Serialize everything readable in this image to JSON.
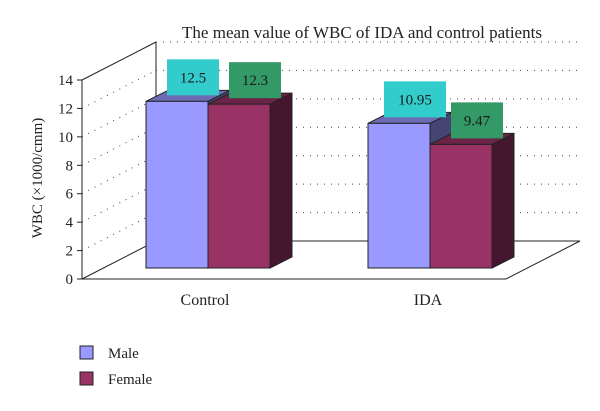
{
  "chart_data": {
    "type": "bar",
    "title": "The mean value of WBC of IDA and control patients",
    "ylabel": "WBC (×1000/cmm)",
    "xlabel": "",
    "categories": [
      "Control",
      "IDA"
    ],
    "series": [
      {
        "name": "Male",
        "values": [
          12.5,
          10.95
        ],
        "color": "#9999ff",
        "labels": [
          "12.5",
          "10.95"
        ],
        "label_bg": "#33cccc"
      },
      {
        "name": "Female",
        "values": [
          12.3,
          9.47
        ],
        "color": "#993366",
        "labels": [
          "12.3",
          "9.47"
        ],
        "label_bg": "#339966"
      }
    ],
    "ylim": [
      0,
      14
    ],
    "yticks": [
      "0",
      "2",
      "4",
      "6",
      "8",
      "10",
      "12",
      "14"
    ],
    "grid": true,
    "style": "3d-clustered",
    "legend": "bottom-left"
  }
}
